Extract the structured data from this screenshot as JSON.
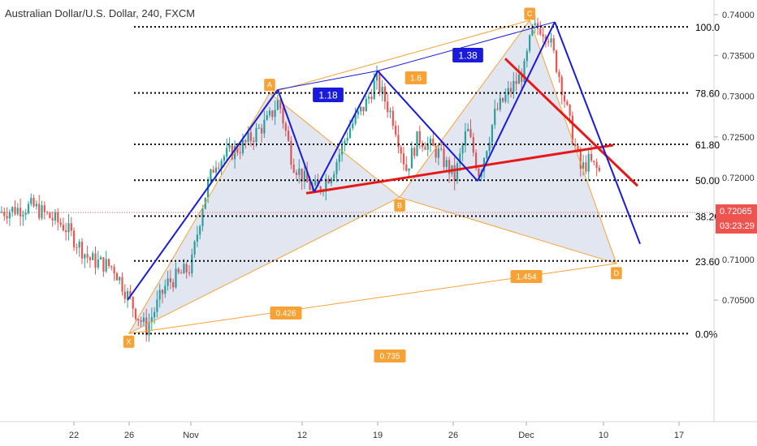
{
  "header": {
    "symbol_title": "Australian Dollar/U.S. Dollar, 240, FXCM"
  },
  "last_price": {
    "value": "0.72065",
    "countdown": "03:23:29",
    "color": "#ef5350"
  },
  "chart_data": {
    "type": "candlestick",
    "title": "Australian Dollar/U.S. Dollar, 240, FXCM",
    "y_ticks": [
      "0.74000",
      "0.73500",
      "0.73000",
      "0.72500",
      "0.72000",
      "0.71500",
      "0.71000",
      "0.70500"
    ],
    "y_tick_values": [
      0.74,
      0.735,
      0.73,
      0.725,
      0.72,
      0.715,
      0.71,
      0.705
    ],
    "x_ticks": [
      "22",
      "26",
      "Nov",
      "12",
      "19",
      "26",
      "Dec",
      "10",
      "17"
    ],
    "ylim": [
      0.7005,
      0.7405
    ],
    "grid": false,
    "colors": {
      "up": "#26a69a",
      "down": "#ef5350",
      "pattern_line": "#f7a235",
      "wave_line": "#1a1adb",
      "trend_line": "#e61919",
      "fib_line": "#000000"
    },
    "fib_levels": [
      {
        "label": "100.0",
        "price": 0.7385
      },
      {
        "label": "78.60",
        "price": 0.7304
      },
      {
        "label": "61.80",
        "price": 0.7241
      },
      {
        "label": "50.00",
        "price": 0.7197
      },
      {
        "label": "38.20",
        "price": 0.7153
      },
      {
        "label": "23.60",
        "price": 0.7098
      },
      {
        "label": "0.0%",
        "price": 0.7009
      }
    ],
    "pattern_points": [
      {
        "label": "X",
        "date": "2018-10-27",
        "price": 0.7009
      },
      {
        "label": "A",
        "date": "2018-11-09",
        "price": 0.7304
      },
      {
        "label": "B",
        "date": "2018-11-21",
        "price": 0.7176
      },
      {
        "label": "C",
        "date": "2018-12-03",
        "price": 0.7393
      },
      {
        "label": "D",
        "date": "2018-12-11",
        "price": 0.7095
      }
    ],
    "pattern_ratios": [
      "0.426",
      "1.6",
      "1.454",
      "0.735"
    ],
    "wave_ratios": [
      "1.18",
      "1.38"
    ]
  }
}
